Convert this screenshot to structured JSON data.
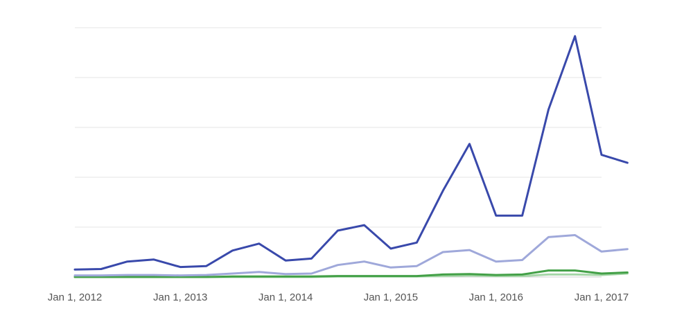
{
  "chart_data": {
    "type": "line",
    "title": "",
    "xlabel": "",
    "ylabel": "",
    "x": [
      "2012-01-01",
      "2012-04-01",
      "2012-07-01",
      "2012-10-01",
      "2013-01-01",
      "2013-04-01",
      "2013-07-01",
      "2013-10-01",
      "2014-01-01",
      "2014-04-01",
      "2014-07-01",
      "2014-10-01",
      "2015-01-01",
      "2015-04-01",
      "2015-07-01",
      "2015-10-01",
      "2016-01-01",
      "2016-04-01",
      "2016-07-01",
      "2016-10-01",
      "2017-01-01",
      "2017-04-01"
    ],
    "x_ticks": [
      "Jan 1, 2012",
      "Jan 1, 2013",
      "Jan 1, 2014",
      "Jan 1, 2015",
      "Jan 1, 2016",
      "Jan 1, 2017"
    ],
    "ylim": [
      0,
      50
    ],
    "y_gridlines": [
      0,
      10,
      20,
      30,
      40,
      50
    ],
    "grid": true,
    "legend": "none",
    "series": [
      {
        "color": "#3949ab",
        "values": [
          1.5,
          1.6,
          3.1,
          3.5,
          2.0,
          2.2,
          5.3,
          6.7,
          3.3,
          3.7,
          9.3,
          10.4,
          5.7,
          6.9,
          17.3,
          26.7,
          12.3,
          12.3,
          33.6,
          48.3,
          24.5,
          22.9
        ]
      },
      {
        "color": "#9fa8da",
        "values": [
          0.3,
          0.3,
          0.4,
          0.4,
          0.3,
          0.4,
          0.7,
          1.0,
          0.6,
          0.7,
          2.4,
          3.1,
          1.9,
          2.2,
          5.0,
          5.4,
          3.1,
          3.4,
          8.0,
          8.4,
          5.1,
          5.6
        ]
      },
      {
        "color": "#43a047",
        "values": [
          0.0,
          0.0,
          0.0,
          0.0,
          0.0,
          0.0,
          0.1,
          0.1,
          0.1,
          0.1,
          0.2,
          0.2,
          0.2,
          0.2,
          0.5,
          0.6,
          0.4,
          0.5,
          1.3,
          1.3,
          0.7,
          0.9
        ]
      },
      {
        "color": "#a5d6a7",
        "values": [
          0.0,
          0.0,
          0.0,
          0.0,
          0.0,
          0.0,
          0.0,
          0.0,
          0.0,
          0.0,
          0.1,
          0.1,
          0.1,
          0.1,
          0.2,
          0.3,
          0.2,
          0.2,
          0.5,
          0.5,
          0.4,
          0.7
        ]
      }
    ]
  }
}
